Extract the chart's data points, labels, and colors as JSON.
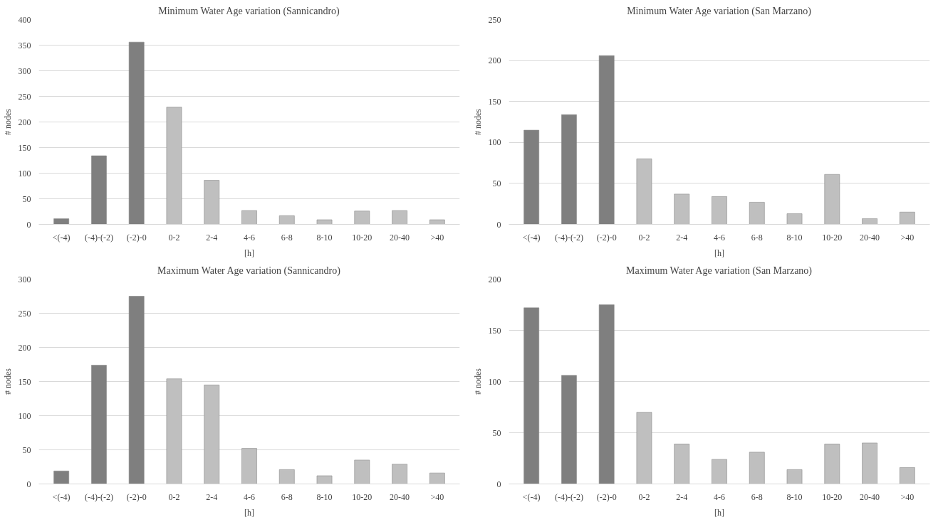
{
  "chart_data": [
    {
      "type": "bar",
      "title": "Minimum Water Age variation (Sannicandro)",
      "xlabel": "[h]",
      "ylabel": "# nodes",
      "categories": [
        "<(-4)",
        "(-4)-(-2)",
        "(-2)-0",
        "0-2",
        "2-4",
        "4-6",
        "6-8",
        "8-10",
        "10-20",
        "20-40",
        ">40"
      ],
      "values": [
        11,
        134,
        356,
        229,
        86,
        27,
        17,
        9,
        26,
        27,
        9
      ],
      "colors": [
        "#7f7f7f",
        "#7f7f7f",
        "#7f7f7f",
        "#bfbfbf",
        "#bfbfbf",
        "#bfbfbf",
        "#bfbfbf",
        "#bfbfbf",
        "#bfbfbf",
        "#bfbfbf",
        "#bfbfbf"
      ],
      "ylim": [
        0,
        400
      ],
      "yticks": [
        0,
        50,
        100,
        150,
        200,
        250,
        300,
        350,
        400
      ],
      "grid": "y"
    },
    {
      "type": "bar",
      "title": "Minimum Water Age variation (San Marzano)",
      "xlabel": "[h]",
      "ylabel": "# nodes",
      "categories": [
        "<(-4)",
        "(-4)-(-2)",
        "(-2)-0",
        "0-2",
        "2-4",
        "4-6",
        "6-8",
        "8-10",
        "10-20",
        "20-40",
        ">40"
      ],
      "values": [
        115,
        134,
        206,
        80,
        37,
        34,
        27,
        13,
        61,
        7,
        15
      ],
      "colors": [
        "#7f7f7f",
        "#7f7f7f",
        "#7f7f7f",
        "#bfbfbf",
        "#bfbfbf",
        "#bfbfbf",
        "#bfbfbf",
        "#bfbfbf",
        "#bfbfbf",
        "#bfbfbf",
        "#bfbfbf"
      ],
      "ylim": [
        0,
        250
      ],
      "yticks": [
        0,
        50,
        100,
        150,
        200,
        250
      ],
      "grid": "y"
    },
    {
      "type": "bar",
      "title": "Maximum Water Age variation (Sannicandro)",
      "xlabel": "[h]",
      "ylabel": "# nodes",
      "categories": [
        "<(-4)",
        "(-4)-(-2)",
        "(-2)-0",
        "0-2",
        "2-4",
        "4-6",
        "6-8",
        "8-10",
        "10-20",
        "20-40",
        ">40"
      ],
      "values": [
        19,
        174,
        275,
        154,
        145,
        52,
        21,
        12,
        35,
        29,
        16
      ],
      "colors": [
        "#7f7f7f",
        "#7f7f7f",
        "#7f7f7f",
        "#bfbfbf",
        "#bfbfbf",
        "#bfbfbf",
        "#bfbfbf",
        "#bfbfbf",
        "#bfbfbf",
        "#bfbfbf",
        "#bfbfbf"
      ],
      "ylim": [
        0,
        300
      ],
      "yticks": [
        0,
        50,
        100,
        150,
        200,
        250,
        300
      ],
      "grid": "y"
    },
    {
      "type": "bar",
      "title": "Maximum Water Age variation (San Marzano)",
      "xlabel": "[h]",
      "ylabel": "# nodes",
      "categories": [
        "<(-4)",
        "(-4)-(-2)",
        "(-2)-0",
        "0-2",
        "2-4",
        "4-6",
        "6-8",
        "8-10",
        "10-20",
        "20-40",
        ">40"
      ],
      "values": [
        172,
        106,
        175,
        70,
        39,
        24,
        31,
        14,
        39,
        40,
        16
      ],
      "colors": [
        "#7f7f7f",
        "#7f7f7f",
        "#7f7f7f",
        "#bfbfbf",
        "#bfbfbf",
        "#bfbfbf",
        "#bfbfbf",
        "#bfbfbf",
        "#bfbfbf",
        "#bfbfbf",
        "#bfbfbf"
      ],
      "ylim": [
        0,
        200
      ],
      "yticks": [
        0,
        50,
        100,
        150,
        200
      ],
      "grid": "y"
    }
  ]
}
